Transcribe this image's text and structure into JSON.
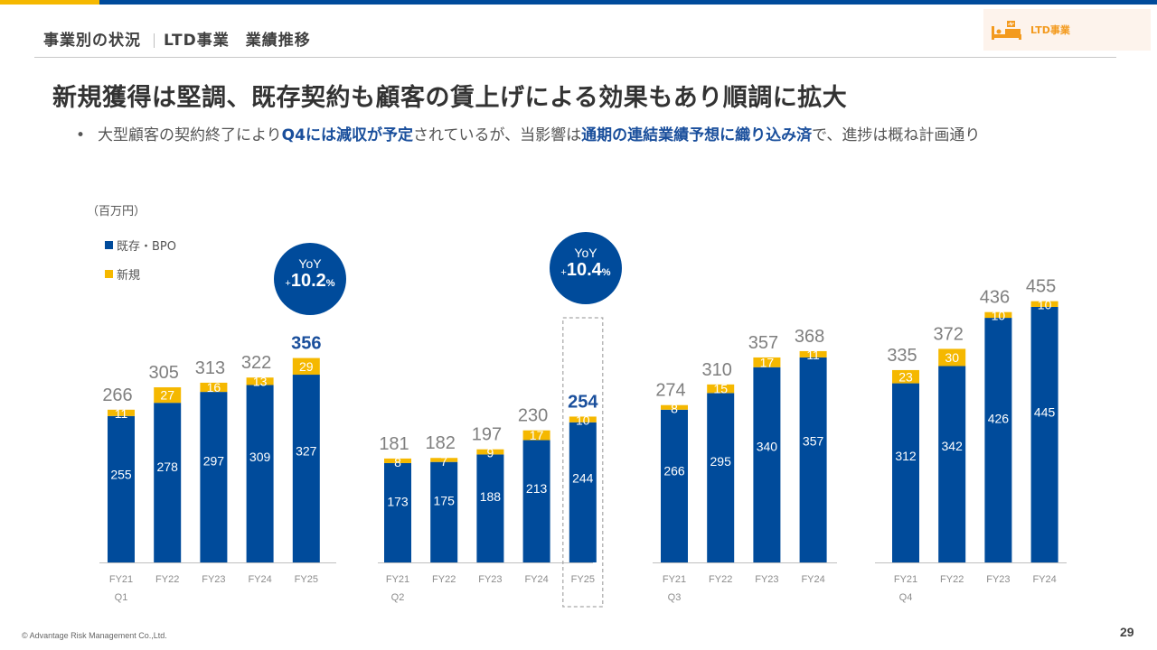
{
  "header": {
    "section": "事業別の状況",
    "subsection": "LTD事業　業績推移",
    "badge_label": "LTD事業",
    "badge_icon": "hospital-bed-icon"
  },
  "headline": "新規獲得は堅調、既存契約も顧客の賃上げによる効果もあり順調に拡大",
  "bullet": {
    "marker": "•",
    "part1": "大型顧客の契約終了により",
    "em1": "Q4には減収が予定",
    "part2": "されているが、当影響は",
    "em2": "通期の連結業績予想に織り込み済",
    "part3": "で、進捗は概ね計画通り"
  },
  "colors": {
    "existing": "#004b9b",
    "new": "#f5b800",
    "total_label": "#7f7f7f",
    "highlight_total": "#1a4f9c"
  },
  "yoy_badges": [
    {
      "label": "YoY",
      "sign": "+",
      "value": "10.2",
      "unit": "%"
    },
    {
      "label": "YoY",
      "sign": "+",
      "value": "10.4",
      "unit": "%"
    }
  ],
  "chart_data": {
    "type": "bar",
    "stacked": true,
    "unit_label": "（百万円）",
    "legend": [
      {
        "name": "既存・BPO",
        "color": "#004b9b"
      },
      {
        "name": "新規",
        "color": "#f5b800"
      }
    ],
    "legend_placement": "top-left",
    "groups": [
      {
        "quarter": "Q1",
        "categories": [
          "FY21",
          "FY22",
          "FY23",
          "FY24",
          "FY25"
        ],
        "series": [
          {
            "name": "既存・BPO",
            "values": [
              255,
              278,
              297,
              309,
              327
            ]
          },
          {
            "name": "新規",
            "values": [
              11,
              27,
              16,
              13,
              29
            ]
          }
        ],
        "totals": [
          266,
          305,
          313,
          322,
          356
        ],
        "highlight_index": 4
      },
      {
        "quarter": "Q2",
        "categories": [
          "FY21",
          "FY22",
          "FY23",
          "FY24",
          "FY25"
        ],
        "series": [
          {
            "name": "既存・BPO",
            "values": [
              173,
              175,
              188,
              213,
              244
            ]
          },
          {
            "name": "新規",
            "values": [
              8,
              7,
              9,
              17,
              10
            ]
          }
        ],
        "totals": [
          181,
          182,
          197,
          230,
          254
        ],
        "highlight_index": 4,
        "dashed_box_index": 4
      },
      {
        "quarter": "Q3",
        "categories": [
          "FY21",
          "FY22",
          "FY23",
          "FY24"
        ],
        "series": [
          {
            "name": "既存・BPO",
            "values": [
              266,
              295,
              340,
              357
            ]
          },
          {
            "name": "新規",
            "values": [
              8,
              15,
              17,
              11
            ]
          }
        ],
        "totals": [
          274,
          310,
          357,
          368
        ]
      },
      {
        "quarter": "Q4",
        "categories": [
          "FY21",
          "FY22",
          "FY23",
          "FY24"
        ],
        "series": [
          {
            "name": "既存・BPO",
            "values": [
              312,
              342,
              426,
              445
            ]
          },
          {
            "name": "新規",
            "values": [
              23,
              30,
              10,
              10
            ]
          }
        ],
        "totals": [
          335,
          372,
          436,
          455
        ]
      }
    ]
  },
  "footer": {
    "copyright": "© Advantage Risk Management Co.,Ltd.",
    "page_number": "29"
  }
}
